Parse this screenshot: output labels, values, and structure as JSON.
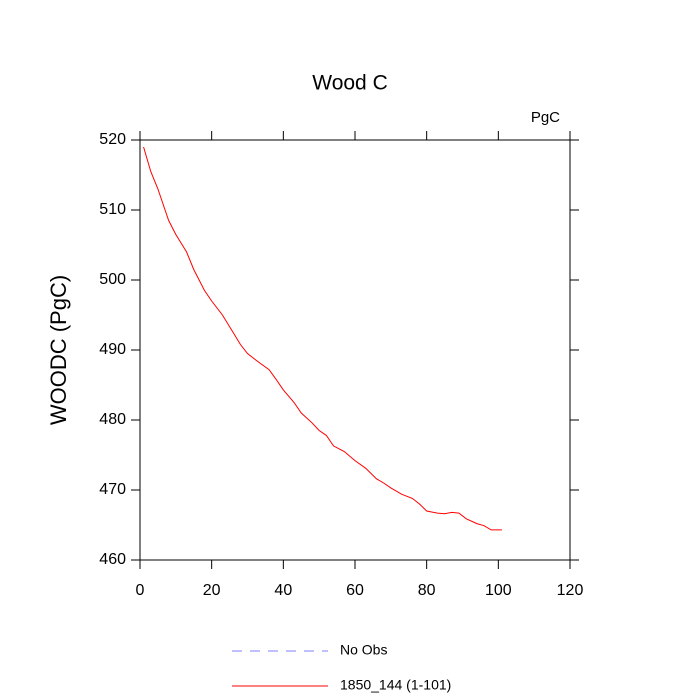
{
  "chart_data": {
    "type": "line",
    "title": "Wood C",
    "units_label": "PgC",
    "y_label": "WOODC  (PgC)",
    "x": [
      1,
      3,
      5,
      8,
      10,
      13,
      15,
      18,
      20,
      23,
      26,
      28,
      30,
      33,
      36,
      38,
      40,
      43,
      45,
      48,
      50,
      52,
      54,
      57,
      60,
      63,
      66,
      68,
      70,
      73,
      76,
      78,
      80,
      83,
      85,
      87,
      89,
      91,
      94,
      96,
      98,
      101
    ],
    "series": [
      {
        "name": "No Obs",
        "color": "#8080ff",
        "dashed": true
      },
      {
        "name": "1850_144 (1-101)",
        "color": "#ff0000",
        "dashed": false,
        "values": [
          519,
          515.5,
          513,
          508.5,
          506.5,
          504,
          501.5,
          498.5,
          497,
          495,
          492.5,
          490.8,
          489.5,
          488.3,
          487.2,
          485.8,
          484.3,
          482.5,
          481,
          479.6,
          478.5,
          477.8,
          476.3,
          475.5,
          474.2,
          473.1,
          471.6,
          471,
          470.3,
          469.4,
          468.8,
          468,
          467,
          466.7,
          466.6,
          466.8,
          466.7,
          465.9,
          465.2,
          464.9,
          464.3,
          464.3
        ]
      }
    ],
    "xlim": [
      0,
      120
    ],
    "xticks": [
      0,
      20,
      40,
      60,
      80,
      100,
      120
    ],
    "ylim": [
      460,
      520
    ],
    "yticks": [
      460,
      470,
      480,
      490,
      500,
      510,
      520
    ]
  }
}
